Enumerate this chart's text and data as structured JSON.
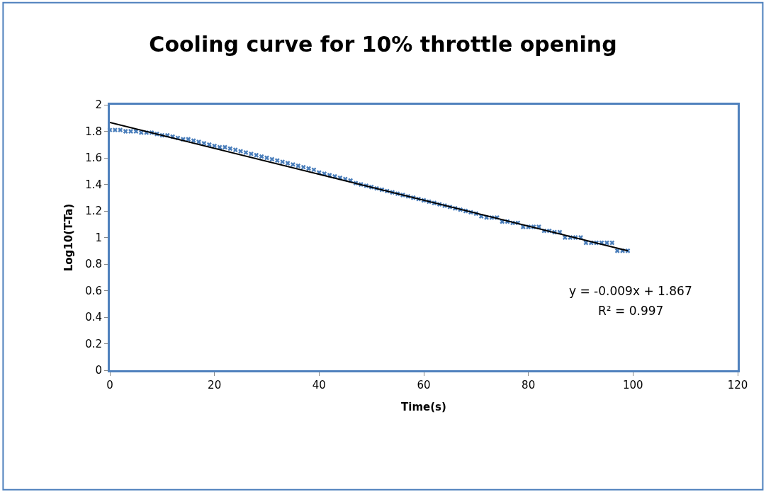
{
  "chart_data": {
    "type": "scatter",
    "title": "Cooling curve for 10% throttle opening",
    "xlabel": "Time(s)",
    "ylabel": "Log10(T-Ta)",
    "xlim": [
      0,
      120
    ],
    "xticks": [
      0,
      20,
      40,
      60,
      80,
      100,
      120
    ],
    "ylim": [
      0,
      2
    ],
    "yticks": [
      0,
      0.2,
      0.4,
      0.6,
      0.8,
      1,
      1.2,
      1.4,
      1.6,
      1.8,
      2
    ],
    "marker": "cross",
    "annotations": [
      "y = -0.009x + 1.867",
      "R² = 0.997"
    ],
    "series": [
      {
        "color": "#4a7ebb",
        "x": [
          0,
          1,
          2,
          3,
          4,
          5,
          6,
          7,
          8,
          9,
          10,
          11,
          12,
          13,
          14,
          15,
          16,
          17,
          18,
          19,
          20,
          21,
          22,
          23,
          24,
          25,
          26,
          27,
          28,
          29,
          30,
          31,
          32,
          33,
          34,
          35,
          36,
          37,
          38,
          39,
          40,
          41,
          42,
          43,
          44,
          45,
          46,
          47,
          48,
          49,
          50,
          51,
          52,
          53,
          54,
          55,
          56,
          57,
          58,
          59,
          60,
          61,
          62,
          63,
          64,
          65,
          66,
          67,
          68,
          69,
          70,
          71,
          72,
          73,
          74,
          75,
          76,
          77,
          78,
          79,
          80,
          81,
          82,
          83,
          84,
          85,
          86,
          87,
          88,
          89,
          90,
          91,
          92,
          93,
          94,
          95,
          96,
          97,
          98,
          99
        ],
        "values": [
          1.81,
          1.81,
          1.81,
          1.8,
          1.8,
          1.8,
          1.79,
          1.79,
          1.79,
          1.78,
          1.77,
          1.77,
          1.76,
          1.75,
          1.74,
          1.74,
          1.73,
          1.72,
          1.71,
          1.7,
          1.69,
          1.68,
          1.68,
          1.67,
          1.66,
          1.65,
          1.64,
          1.63,
          1.62,
          1.61,
          1.6,
          1.59,
          1.58,
          1.57,
          1.56,
          1.55,
          1.54,
          1.53,
          1.52,
          1.51,
          1.49,
          1.48,
          1.47,
          1.46,
          1.45,
          1.44,
          1.43,
          1.41,
          1.4,
          1.39,
          1.38,
          1.37,
          1.36,
          1.35,
          1.34,
          1.33,
          1.32,
          1.31,
          1.3,
          1.29,
          1.28,
          1.27,
          1.26,
          1.25,
          1.24,
          1.23,
          1.22,
          1.21,
          1.2,
          1.19,
          1.18,
          1.16,
          1.15,
          1.15,
          1.15,
          1.12,
          1.12,
          1.11,
          1.11,
          1.08,
          1.08,
          1.08,
          1.08,
          1.05,
          1.05,
          1.04,
          1.04,
          1.0,
          1.0,
          1.0,
          1.0,
          0.96,
          0.96,
          0.96,
          0.96,
          0.96,
          0.96,
          0.9,
          0.9,
          0.9
        ]
      },
      {
        "type": "line",
        "color": "#000000",
        "marker": "none",
        "line_style": "solid",
        "x": [
          0,
          99
        ],
        "values": [
          1.867,
          0.9
        ]
      }
    ]
  }
}
